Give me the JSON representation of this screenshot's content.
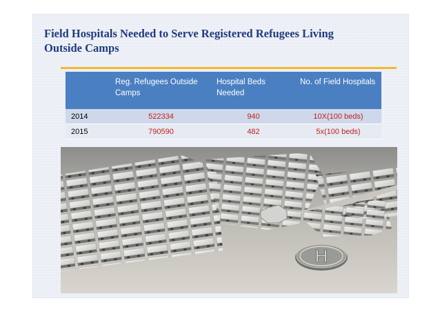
{
  "slide": {
    "title_line1": "Field Hospitals Needed to Serve Registered Refugees Living",
    "title_line2": "Outside Camps"
  },
  "table": {
    "headers": [
      "",
      "Reg. Refugees Outside Camps",
      "Hospital Beds Needed",
      "No. of Field Hospitals"
    ],
    "rows": [
      {
        "year": "2014",
        "refugees": "522334",
        "beds": "940",
        "hospitals": "10X(100 beds)"
      },
      {
        "year": "2015",
        "refugees": "790590",
        "beds": "482",
        "hospitals": "5x(100 beds)"
      }
    ]
  },
  "image": {
    "helipad_letter": "H"
  },
  "colors": {
    "title": "#1f3b7a",
    "rule": "#f2b92b",
    "header_bg": "#4a7fc1",
    "value_text": "#c0211c"
  }
}
